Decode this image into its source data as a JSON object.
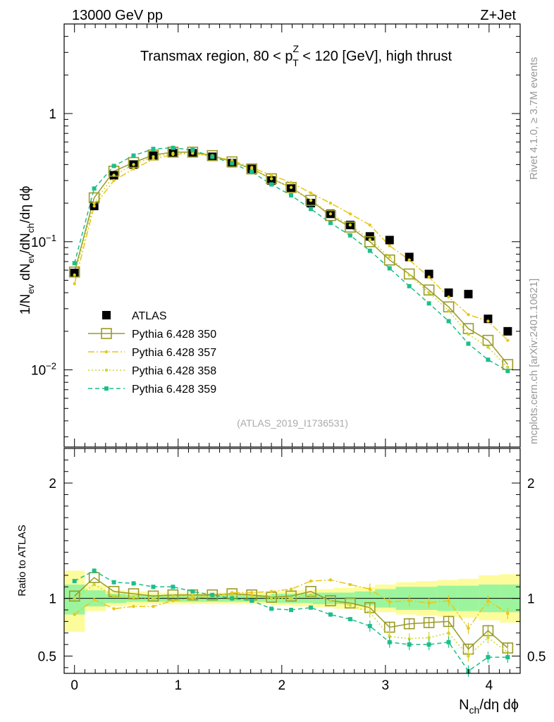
{
  "header": {
    "left": "13000 GeV pp",
    "right": "Z+Jet"
  },
  "chart_data": {
    "type": "line",
    "title_parts": {
      "before": "Transmax region, 80 < p",
      "sup": "Z",
      "sub": "T",
      "after": " < 120 [GeV], high thrust"
    },
    "analysis_id": "(ATLAS_2019_I1736531)",
    "side_labels": {
      "rivet": "Rivet 4.1.0, ≥ 3.7M events",
      "mcplots": "mcplots.cern.ch [arXiv:2401.10621]"
    },
    "main_panel": {
      "ylabel_parts": [
        "1/N",
        "ev",
        " dN",
        "ev",
        "/dN",
        "ch",
        "/dη dϕ"
      ],
      "yscale": "log",
      "ylim": [
        0.0025,
        5.0
      ],
      "yticks": [
        {
          "value": 1,
          "label": "1",
          "sup": ""
        },
        {
          "value": 0.1,
          "label": "10",
          "sup": "−1"
        },
        {
          "value": 0.01,
          "label": "10",
          "sup": "−2"
        }
      ]
    },
    "ratio_panel": {
      "ylabel": "Ratio to ATLAS",
      "ylim": [
        0.35,
        2.3
      ],
      "yticks": [
        "0.5",
        "1",
        "2"
      ],
      "band_outer": [
        {
          "x0": -0.1,
          "x1": 0.1,
          "lo": 0.71,
          "hi": 1.24
        },
        {
          "x0": 0.1,
          "x1": 0.3,
          "lo": 0.89,
          "hi": 1.12
        },
        {
          "x0": 0.3,
          "x1": 0.5,
          "lo": 0.93,
          "hi": 1.07
        },
        {
          "x0": 0.5,
          "x1": 0.7,
          "lo": 0.94,
          "hi": 1.06
        },
        {
          "x0": 0.7,
          "x1": 0.9,
          "lo": 0.95,
          "hi": 1.05
        },
        {
          "x0": 0.9,
          "x1": 1.1,
          "lo": 0.95,
          "hi": 1.05
        },
        {
          "x0": 1.1,
          "x1": 1.3,
          "lo": 0.95,
          "hi": 1.05
        },
        {
          "x0": 1.3,
          "x1": 1.5,
          "lo": 0.95,
          "hi": 1.05
        },
        {
          "x0": 1.5,
          "x1": 1.7,
          "lo": 0.95,
          "hi": 1.05
        },
        {
          "x0": 1.7,
          "x1": 1.9,
          "lo": 0.95,
          "hi": 1.05
        },
        {
          "x0": 1.9,
          "x1": 2.1,
          "lo": 0.94,
          "hi": 1.06
        },
        {
          "x0": 2.1,
          "x1": 2.3,
          "lo": 0.93,
          "hi": 1.07
        },
        {
          "x0": 2.3,
          "x1": 2.5,
          "lo": 0.92,
          "hi": 1.08
        },
        {
          "x0": 2.5,
          "x1": 2.7,
          "lo": 0.91,
          "hi": 1.09
        },
        {
          "x0": 2.7,
          "x1": 2.9,
          "lo": 0.9,
          "hi": 1.1
        },
        {
          "x0": 2.9,
          "x1": 3.1,
          "lo": 0.88,
          "hi": 1.12
        },
        {
          "x0": 3.1,
          "x1": 3.3,
          "lo": 0.86,
          "hi": 1.14
        },
        {
          "x0": 3.3,
          "x1": 3.5,
          "lo": 0.85,
          "hi": 1.15
        },
        {
          "x0": 3.5,
          "x1": 3.7,
          "lo": 0.84,
          "hi": 1.16
        },
        {
          "x0": 3.7,
          "x1": 3.9,
          "lo": 0.83,
          "hi": 1.17
        },
        {
          "x0": 3.9,
          "x1": 4.1,
          "lo": 0.81,
          "hi": 1.2
        },
        {
          "x0": 4.1,
          "x1": 4.3,
          "lo": 0.79,
          "hi": 1.21
        }
      ],
      "band_inner": [
        {
          "x0": -0.1,
          "x1": 0.1,
          "lo": 0.86,
          "hi": 1.12
        },
        {
          "x0": 0.1,
          "x1": 0.3,
          "lo": 0.93,
          "hi": 1.07
        },
        {
          "x0": 0.3,
          "x1": 0.5,
          "lo": 0.96,
          "hi": 1.04
        },
        {
          "x0": 0.5,
          "x1": 0.7,
          "lo": 0.97,
          "hi": 1.03
        },
        {
          "x0": 0.7,
          "x1": 0.9,
          "lo": 0.97,
          "hi": 1.03
        },
        {
          "x0": 0.9,
          "x1": 1.1,
          "lo": 0.97,
          "hi": 1.03
        },
        {
          "x0": 1.1,
          "x1": 1.3,
          "lo": 0.97,
          "hi": 1.03
        },
        {
          "x0": 1.3,
          "x1": 1.5,
          "lo": 0.97,
          "hi": 1.03
        },
        {
          "x0": 1.5,
          "x1": 1.7,
          "lo": 0.97,
          "hi": 1.03
        },
        {
          "x0": 1.7,
          "x1": 1.9,
          "lo": 0.97,
          "hi": 1.03
        },
        {
          "x0": 1.9,
          "x1": 2.1,
          "lo": 0.96,
          "hi": 1.04
        },
        {
          "x0": 2.1,
          "x1": 2.3,
          "lo": 0.96,
          "hi": 1.04
        },
        {
          "x0": 2.3,
          "x1": 2.5,
          "lo": 0.95,
          "hi": 1.05
        },
        {
          "x0": 2.5,
          "x1": 2.7,
          "lo": 0.95,
          "hi": 1.05
        },
        {
          "x0": 2.7,
          "x1": 2.9,
          "lo": 0.94,
          "hi": 1.06
        },
        {
          "x0": 2.9,
          "x1": 3.1,
          "lo": 0.92,
          "hi": 1.08
        },
        {
          "x0": 3.1,
          "x1": 3.3,
          "lo": 0.9,
          "hi": 1.1
        },
        {
          "x0": 3.3,
          "x1": 3.5,
          "lo": 0.9,
          "hi": 1.1
        },
        {
          "x0": 3.5,
          "x1": 3.7,
          "lo": 0.89,
          "hi": 1.11
        },
        {
          "x0": 3.7,
          "x1": 3.9,
          "lo": 0.89,
          "hi": 1.11
        },
        {
          "x0": 3.9,
          "x1": 4.1,
          "lo": 0.88,
          "hi": 1.12
        },
        {
          "x0": 4.1,
          "x1": 4.3,
          "lo": 0.88,
          "hi": 1.12
        }
      ]
    },
    "x_axis": {
      "label_parts": [
        "N",
        "ch",
        "/dη dϕ"
      ],
      "xlim": [
        -0.1,
        4.3
      ],
      "ticks": [
        "0",
        "1",
        "2",
        "3",
        "4"
      ]
    },
    "x": [
      0,
      0.19,
      0.38,
      0.57,
      0.76,
      0.95,
      1.14,
      1.33,
      1.52,
      1.71,
      1.9,
      2.09,
      2.28,
      2.47,
      2.66,
      2.85,
      3.04,
      3.23,
      3.42,
      3.61,
      3.8,
      3.99,
      4.18
    ],
    "legend_position": "lower-left",
    "series": [
      {
        "name": "ATLAS",
        "color": "#000000",
        "marker": "filled-square",
        "values": [
          0.057,
          0.19,
          0.33,
          0.4,
          0.47,
          0.49,
          0.49,
          0.46,
          0.41,
          0.37,
          0.3,
          0.26,
          0.2,
          0.165,
          0.135,
          0.11,
          0.103,
          0.076,
          0.056,
          0.04,
          0.039,
          0.025,
          0.02
        ],
        "ratio": []
      },
      {
        "name": "Pythia 6.428 350",
        "color": "#9a9a28",
        "marker": "open-square",
        "dash": "",
        "values": [
          0.058,
          0.22,
          0.355,
          0.415,
          0.475,
          0.5,
          0.5,
          0.47,
          0.42,
          0.37,
          0.31,
          0.265,
          0.21,
          0.16,
          0.13,
          0.1,
          0.072,
          0.056,
          0.042,
          0.031,
          0.021,
          0.017,
          0.011
        ],
        "ratio": [
          1.02,
          1.18,
          1.06,
          1.04,
          1.02,
          1.03,
          1.03,
          1.03,
          1.04,
          1.03,
          1.01,
          1.02,
          1.06,
          0.98,
          0.96,
          0.92,
          0.75,
          0.78,
          0.79,
          0.8,
          0.56,
          0.72,
          0.57
        ]
      },
      {
        "name": "Pythia 6.428 357",
        "color": "#e8c619",
        "marker": "dot",
        "dash": "9,3,2,3",
        "values": [
          0.047,
          0.19,
          0.3,
          0.37,
          0.44,
          0.48,
          0.49,
          0.47,
          0.43,
          0.38,
          0.33,
          0.29,
          0.24,
          0.2,
          0.165,
          0.135,
          0.093,
          0.072,
          0.053,
          0.037,
          0.027,
          0.024,
          0.017
        ],
        "ratio": [
          0.86,
          0.99,
          0.91,
          0.93,
          0.93,
          0.98,
          1.0,
          1.02,
          1.05,
          1.05,
          1.06,
          1.08,
          1.15,
          1.16,
          1.12,
          1.08,
          0.97,
          0.98,
          0.96,
          0.98,
          0.74,
          0.98,
          0.87
        ]
      },
      {
        "name": "Pythia 6.428 358",
        "color": "#cfd62a",
        "marker": "dot",
        "dash": "2,3",
        "values": [
          0.055,
          0.2,
          0.33,
          0.4,
          0.46,
          0.49,
          0.49,
          0.46,
          0.42,
          0.37,
          0.31,
          0.265,
          0.21,
          0.165,
          0.135,
          0.104,
          0.076,
          0.055,
          0.04,
          0.029,
          0.019,
          0.015,
          0.0105
        ],
        "ratio": [
          1.0,
          1.12,
          1.02,
          1.01,
          1.0,
          1.02,
          1.02,
          1.02,
          1.03,
          1.02,
          1.0,
          1.0,
          1.03,
          0.98,
          0.94,
          0.88,
          0.67,
          0.65,
          0.66,
          0.7,
          0.5,
          0.66,
          0.53
        ]
      },
      {
        "name": "Pythia 6.428 359",
        "color": "#1dbe8a",
        "marker": "small-square",
        "dash": "6,4",
        "values": [
          0.068,
          0.26,
          0.39,
          0.47,
          0.53,
          0.54,
          0.52,
          0.46,
          0.41,
          0.35,
          0.28,
          0.23,
          0.18,
          0.14,
          0.112,
          0.085,
          0.062,
          0.045,
          0.033,
          0.024,
          0.016,
          0.012,
          0.0098
        ],
        "ratio": [
          1.15,
          1.24,
          1.14,
          1.13,
          1.1,
          1.1,
          1.06,
          1.03,
          1.0,
          0.98,
          0.91,
          0.9,
          0.92,
          0.86,
          0.82,
          0.76,
          0.62,
          0.6,
          0.6,
          0.62,
          0.37,
          0.49,
          0.49
        ]
      }
    ]
  }
}
